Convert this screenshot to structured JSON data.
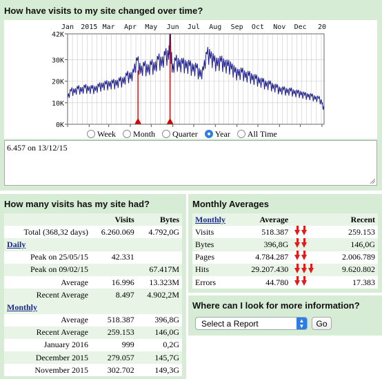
{
  "visits_chart": {
    "title": "How have visits to my site changed over time?",
    "period_options": [
      {
        "label": "Week",
        "selected": false
      },
      {
        "label": "Month",
        "selected": false
      },
      {
        "label": "Quarter",
        "selected": false
      },
      {
        "label": "Year",
        "selected": true
      },
      {
        "label": "All Time",
        "selected": false
      }
    ],
    "info_text": "6.457 on 13/12/15"
  },
  "chart_data": {
    "type": "line",
    "title": "",
    "xlabel": "",
    "ylabel": "",
    "x_tick_labels": [
      "Jan",
      "2015",
      "Mar",
      "Apr",
      "May",
      "Jun",
      "Jul",
      "Aug",
      "Sep",
      "Oct",
      "Nov",
      "Dec",
      "20"
    ],
    "y_tick_labels": [
      "0K",
      "10K",
      "20K",
      "30K",
      "42K"
    ],
    "ylim": [
      0,
      42000
    ],
    "x_range_days": [
      0,
      368
    ],
    "grid": true,
    "line_color": "#1a1a8c",
    "marker_color": "#d40000",
    "markers": [
      {
        "day": 101,
        "label": "Apr"
      },
      {
        "day": 147,
        "label": "May"
      }
    ],
    "series": [
      {
        "days": [
          0,
          5,
          10,
          15,
          20,
          25,
          30,
          35,
          40,
          45,
          50,
          55,
          60,
          65,
          70,
          75,
          80,
          85,
          90,
          95,
          100,
          105,
          110,
          115,
          120,
          125,
          130,
          135,
          140,
          145,
          147,
          150,
          155,
          160,
          165,
          170,
          175,
          180,
          185,
          190,
          195,
          200,
          205,
          210,
          215,
          220,
          225,
          230,
          235,
          240,
          245,
          250,
          255,
          260,
          265,
          270,
          275,
          280,
          285,
          290,
          295,
          300,
          305,
          310,
          315,
          320,
          325,
          330,
          335,
          340,
          345,
          350,
          355,
          360,
          365,
          368
        ],
        "values": [
          12000,
          15500,
          14500,
          16500,
          15000,
          17000,
          15500,
          16500,
          15500,
          17500,
          17000,
          18500,
          17500,
          19000,
          18000,
          20000,
          19000,
          22500,
          21000,
          24000,
          29500,
          23500,
          27000,
          24000,
          27500,
          25000,
          30000,
          27000,
          32000,
          30000,
          42000,
          24000,
          29500,
          26500,
          28000,
          26000,
          27000,
          24500,
          26000,
          22000,
          25000,
          32500,
          30500,
          29000,
          27000,
          29000,
          26500,
          27000,
          25500,
          24000,
          22500,
          24000,
          21500,
          22500,
          20500,
          21000,
          19000,
          19500,
          17500,
          18500,
          16500,
          17000,
          15000,
          16000,
          14500,
          15500,
          14000,
          14500,
          13500,
          13500,
          12500,
          13000,
          11500,
          12000,
          9500,
          6457
        ]
      }
    ]
  },
  "visits_table": {
    "title": "How many visits has my site had?",
    "col_visits": "Visits",
    "col_bytes": "Bytes",
    "total": {
      "label": "Total (368,32 days)",
      "visits": "6.260.069",
      "bytes": "4.792,0G"
    },
    "daily_label": "Daily",
    "daily": [
      {
        "label": "Peak on 25/05/15",
        "visits": "42.331",
        "bytes": ""
      },
      {
        "label": "Peak on 09/02/15",
        "visits": "",
        "bytes": "67.417M"
      },
      {
        "label": "Average",
        "visits": "16.996",
        "bytes": "13.323M"
      },
      {
        "label": "Recent Average",
        "visits": "8.497",
        "bytes": "4.902,2M"
      }
    ],
    "monthly_label": "Monthly",
    "monthly": [
      {
        "label": "Average",
        "visits": "518.387",
        "bytes": "396,8G"
      },
      {
        "label": "Recent Average",
        "visits": "259.153",
        "bytes": "146,0G"
      },
      {
        "label": "January 2016",
        "visits": "999",
        "bytes": "0,2G"
      },
      {
        "label": "December 2015",
        "visits": "279.057",
        "bytes": "145,7G"
      },
      {
        "label": "November 2015",
        "visits": "302.702",
        "bytes": "149,3G"
      }
    ]
  },
  "monthly_averages": {
    "title": "Monthly Averages",
    "col_monthly": "Monthly",
    "col_average": "Average",
    "col_recent": "Recent",
    "rows": [
      {
        "label": "Visits",
        "average": "518.387",
        "trend_arrows": 2,
        "recent": "259.153"
      },
      {
        "label": "Bytes",
        "average": "396,8G",
        "trend_arrows": 2,
        "recent": "146,0G"
      },
      {
        "label": "Pages",
        "average": "4.784.287",
        "trend_arrows": 2,
        "recent": "2.006.789"
      },
      {
        "label": "Hits",
        "average": "29.207.430",
        "trend_arrows": 3,
        "recent": "9.620.802"
      },
      {
        "label": "Errors",
        "average": "44.780",
        "trend_arrows": 2,
        "recent": "17.383"
      }
    ],
    "trend_icon": "red-down-arrow-icon"
  },
  "more_info": {
    "title": "Where can I look for more information?",
    "select_value": "Select a Report",
    "go_label": "Go"
  }
}
